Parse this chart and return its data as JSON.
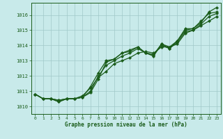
{
  "title": "Graphe pression niveau de la mer (hPa)",
  "ylabel_ticks": [
    1010,
    1011,
    1012,
    1013,
    1014,
    1015,
    1016
  ],
  "xlim": [
    -0.5,
    23.5
  ],
  "ylim": [
    1009.5,
    1016.8
  ],
  "bg_color": "#c8eaea",
  "line_color": "#1a5c1a",
  "grid_color": "#a0c8c8",
  "series": [
    [
      1010.8,
      1010.5,
      1010.5,
      1010.3,
      1010.5,
      1010.5,
      1010.6,
      1010.9,
      1011.8,
      1012.9,
      1013.1,
      1013.5,
      1013.6,
      1013.9,
      1013.5,
      1013.3,
      1014.1,
      1013.8,
      1014.3,
      1015.1,
      1015.1,
      1015.5,
      1016.2,
      1016.5
    ],
    [
      1010.8,
      1010.5,
      1010.5,
      1010.3,
      1010.5,
      1010.5,
      1010.7,
      1011.2,
      1011.9,
      1012.3,
      1012.8,
      1013.0,
      1013.2,
      1013.5,
      1013.6,
      1013.5,
      1013.9,
      1013.9,
      1014.1,
      1014.8,
      1015.0,
      1015.3,
      1015.6,
      1015.9
    ],
    [
      1010.8,
      1010.5,
      1010.5,
      1010.4,
      1010.5,
      1010.5,
      1010.6,
      1011.3,
      1012.2,
      1013.0,
      1013.1,
      1013.5,
      1013.7,
      1013.9,
      1013.5,
      1013.4,
      1014.1,
      1013.9,
      1014.3,
      1015.0,
      1015.1,
      1015.6,
      1016.1,
      1016.2
    ],
    [
      1010.8,
      1010.5,
      1010.5,
      1010.4,
      1010.5,
      1010.5,
      1010.6,
      1011.0,
      1012.0,
      1012.7,
      1013.0,
      1013.3,
      1013.5,
      1013.8,
      1013.5,
      1013.4,
      1014.0,
      1013.8,
      1014.2,
      1014.9,
      1015.0,
      1015.4,
      1015.9,
      1016.1
    ]
  ],
  "hours": [
    0,
    1,
    2,
    3,
    4,
    5,
    6,
    7,
    8,
    9,
    10,
    11,
    12,
    13,
    14,
    15,
    16,
    17,
    18,
    19,
    20,
    21,
    22,
    23
  ]
}
